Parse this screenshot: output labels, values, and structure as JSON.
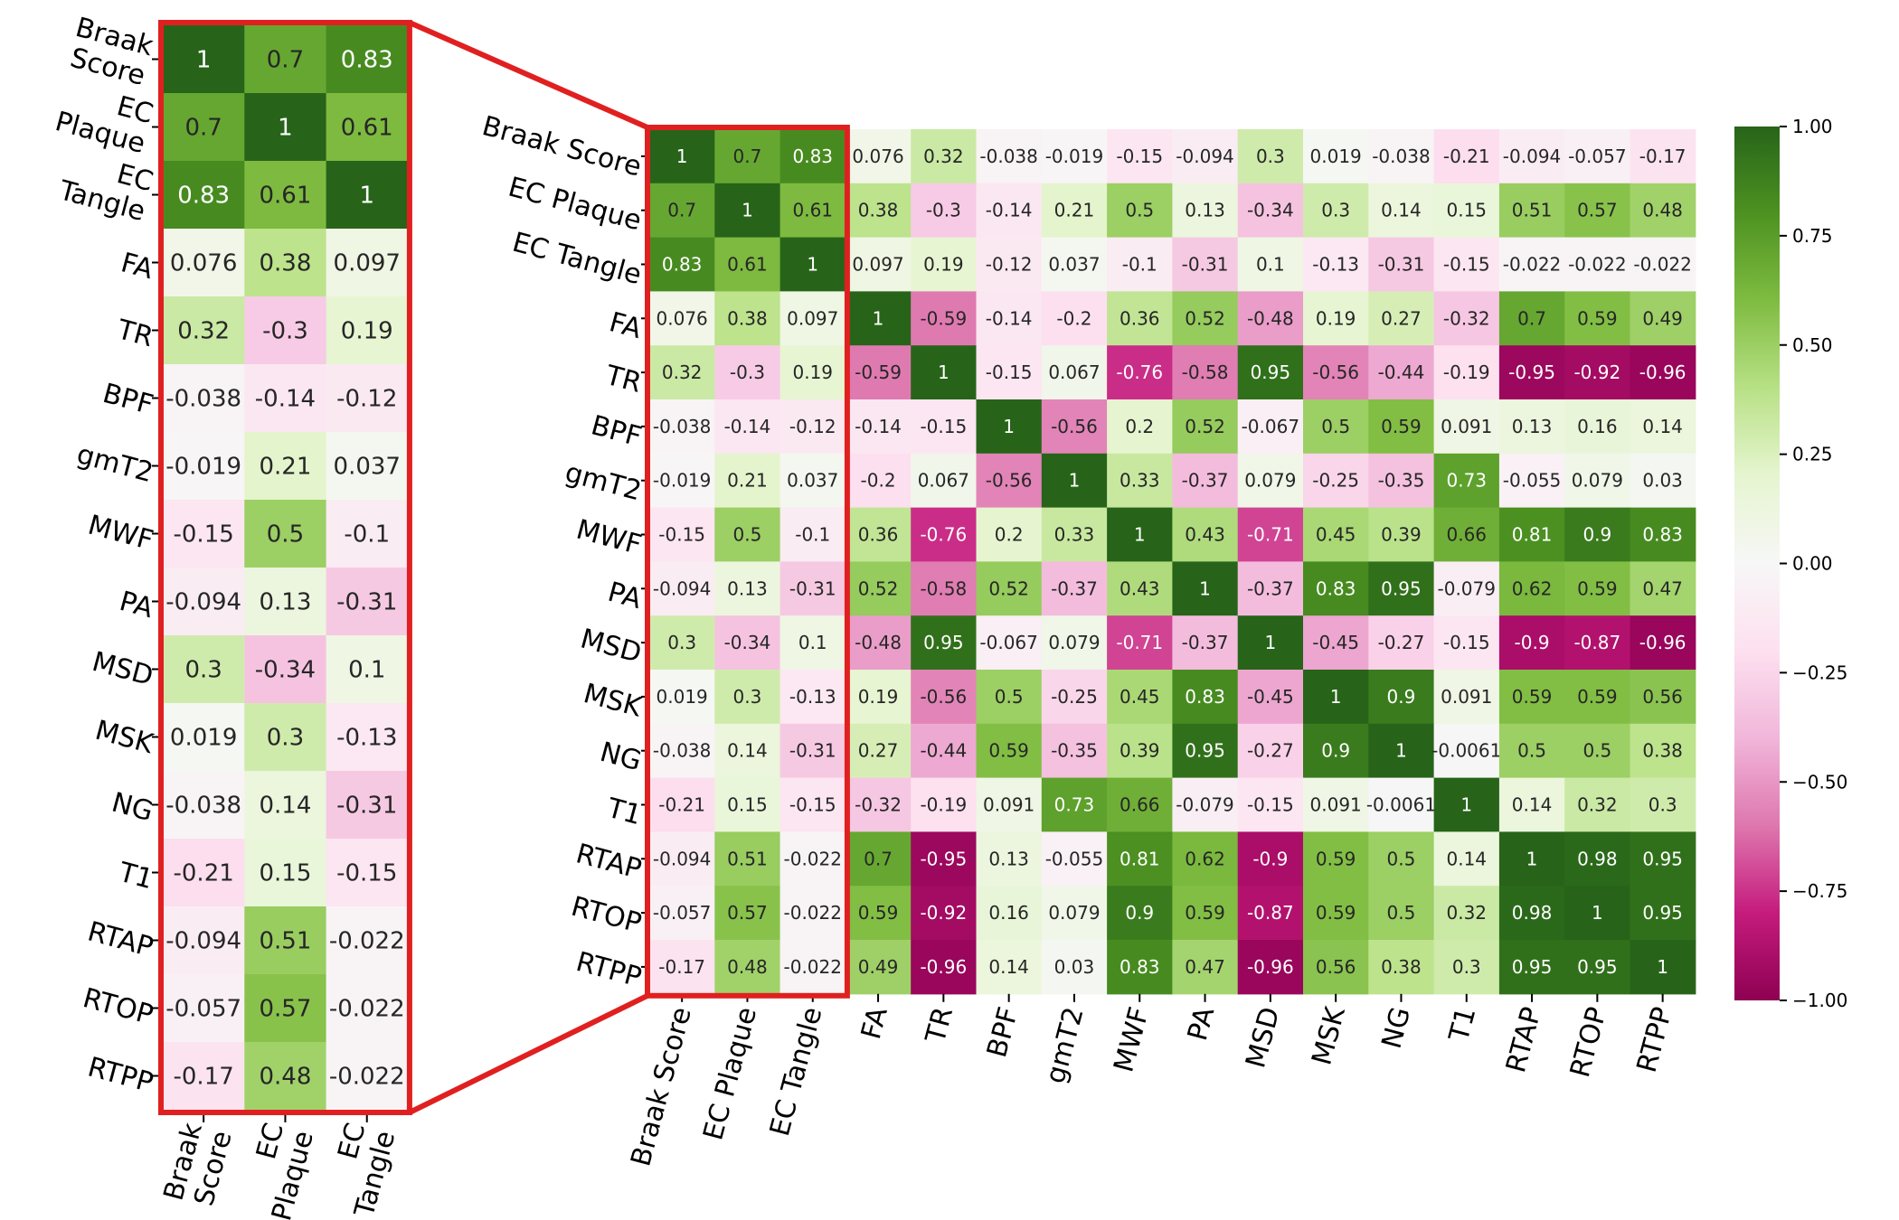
{
  "chart_data": [
    {
      "type": "heatmap",
      "title": "",
      "colorbar": {
        "min": -1.0,
        "max": 1.0,
        "ticks": [
          "1.00",
          "0.75",
          "0.50",
          "0.25",
          "0.00",
          "−0.25",
          "−0.50",
          "−0.75",
          "−1.00"
        ],
        "colormap": "PiYG",
        "colors": [
          "#8e0152",
          "#c51b7d",
          "#de77ae",
          "#f1b6da",
          "#fde0ef",
          "#f7f7f7",
          "#e6f5d0",
          "#b8e186",
          "#7fbc41",
          "#4d9221",
          "#276419"
        ]
      },
      "row_labels": [
        "Braak Score",
        "EC Plaque",
        "EC Tangle",
        "FA",
        "TR",
        "BPF",
        "gmT2",
        "MWF",
        "PA",
        "MSD",
        "MSK",
        "NG",
        "T1",
        "RTAP",
        "RTOP",
        "RTPP"
      ],
      "col_labels": [
        "Braak Score",
        "EC Plaque",
        "EC Tangle",
        "FA",
        "TR",
        "BPF",
        "gmT2",
        "MWF",
        "PA",
        "MSD",
        "MSK",
        "NG",
        "T1",
        "RTAP",
        "RTOP",
        "RTPP"
      ],
      "values": [
        [
          "1",
          "0.7",
          "0.83",
          "0.076",
          "0.32",
          "-0.038",
          "-0.019",
          "-0.15",
          "-0.094",
          "0.3",
          "0.019",
          "-0.038",
          "-0.21",
          "-0.094",
          "-0.057",
          "-0.17"
        ],
        [
          "0.7",
          "1",
          "0.61",
          "0.38",
          "-0.3",
          "-0.14",
          "0.21",
          "0.5",
          "0.13",
          "-0.34",
          "0.3",
          "0.14",
          "0.15",
          "0.51",
          "0.57",
          "0.48"
        ],
        [
          "0.83",
          "0.61",
          "1",
          "0.097",
          "0.19",
          "-0.12",
          "0.037",
          "-0.1",
          "-0.31",
          "0.1",
          "-0.13",
          "-0.31",
          "-0.15",
          "-0.022",
          "-0.022",
          "-0.022"
        ],
        [
          "0.076",
          "0.38",
          "0.097",
          "1",
          "-0.59",
          "-0.14",
          "-0.2",
          "0.36",
          "0.52",
          "-0.48",
          "0.19",
          "0.27",
          "-0.32",
          "0.7",
          "0.59",
          "0.49"
        ],
        [
          "0.32",
          "-0.3",
          "0.19",
          "-0.59",
          "1",
          "-0.15",
          "0.067",
          "-0.76",
          "-0.58",
          "0.95",
          "-0.56",
          "-0.44",
          "-0.19",
          "-0.95",
          "-0.92",
          "-0.96"
        ],
        [
          "-0.038",
          "-0.14",
          "-0.12",
          "-0.14",
          "-0.15",
          "1",
          "-0.56",
          "0.2",
          "0.52",
          "-0.067",
          "0.5",
          "0.59",
          "0.091",
          "0.13",
          "0.16",
          "0.14"
        ],
        [
          "-0.019",
          "0.21",
          "0.037",
          "-0.2",
          "0.067",
          "-0.56",
          "1",
          "0.33",
          "-0.37",
          "0.079",
          "-0.25",
          "-0.35",
          "0.73",
          "-0.055",
          "0.079",
          "0.03"
        ],
        [
          "-0.15",
          "0.5",
          "-0.1",
          "0.36",
          "-0.76",
          "0.2",
          "0.33",
          "1",
          "0.43",
          "-0.71",
          "0.45",
          "0.39",
          "0.66",
          "0.81",
          "0.9",
          "0.83"
        ],
        [
          "-0.094",
          "0.13",
          "-0.31",
          "0.52",
          "-0.58",
          "0.52",
          "-0.37",
          "0.43",
          "1",
          "-0.37",
          "0.83",
          "0.95",
          "-0.079",
          "0.62",
          "0.59",
          "0.47"
        ],
        [
          "0.3",
          "-0.34",
          "0.1",
          "-0.48",
          "0.95",
          "-0.067",
          "0.079",
          "-0.71",
          "-0.37",
          "1",
          "-0.45",
          "-0.27",
          "-0.15",
          "-0.9",
          "-0.87",
          "-0.96"
        ],
        [
          "0.019",
          "0.3",
          "-0.13",
          "0.19",
          "-0.56",
          "0.5",
          "-0.25",
          "0.45",
          "0.83",
          "-0.45",
          "1",
          "0.9",
          "0.091",
          "0.59",
          "0.59",
          "0.56"
        ],
        [
          "-0.038",
          "0.14",
          "-0.31",
          "0.27",
          "-0.44",
          "0.59",
          "-0.35",
          "0.39",
          "0.95",
          "-0.27",
          "0.9",
          "1",
          "-0.0061",
          "0.5",
          "0.5",
          "0.38"
        ],
        [
          "-0.21",
          "0.15",
          "-0.15",
          "-0.32",
          "-0.19",
          "0.091",
          "0.73",
          "0.66",
          "-0.079",
          "-0.15",
          "0.091",
          "-0.0061",
          "1",
          "0.14",
          "0.32",
          "0.3"
        ],
        [
          "-0.094",
          "0.51",
          "-0.022",
          "0.7",
          "-0.95",
          "0.13",
          "-0.055",
          "0.81",
          "0.62",
          "-0.9",
          "0.59",
          "0.5",
          "0.14",
          "1",
          "0.98",
          "0.95"
        ],
        [
          "-0.057",
          "0.57",
          "-0.022",
          "0.59",
          "-0.92",
          "0.16",
          "0.079",
          "0.9",
          "0.59",
          "-0.87",
          "0.59",
          "0.5",
          "0.32",
          "0.98",
          "1",
          "0.95"
        ],
        [
          "-0.17",
          "0.48",
          "-0.022",
          "0.49",
          "-0.96",
          "0.14",
          "0.03",
          "0.83",
          "0.47",
          "-0.96",
          "0.56",
          "0.38",
          "0.3",
          "0.95",
          "0.95",
          "1"
        ]
      ],
      "highlight": {
        "columns": [
          "Braak Score",
          "EC Plaque",
          "EC Tangle"
        ],
        "color": "#e02020"
      }
    },
    {
      "type": "heatmap",
      "title": "",
      "row_labels": [
        "Braak Score",
        "EC Plaque",
        "EC Tangle",
        "FA",
        "TR",
        "BPF",
        "gmT2",
        "MWF",
        "PA",
        "MSD",
        "MSK",
        "NG",
        "T1",
        "RTAP",
        "RTOP",
        "RTPP"
      ],
      "col_labels": [
        "Braak Score",
        "EC Plaque",
        "EC Tangle"
      ],
      "note_source": "zoomed view of the first three columns of the main heatmap"
    }
  ]
}
